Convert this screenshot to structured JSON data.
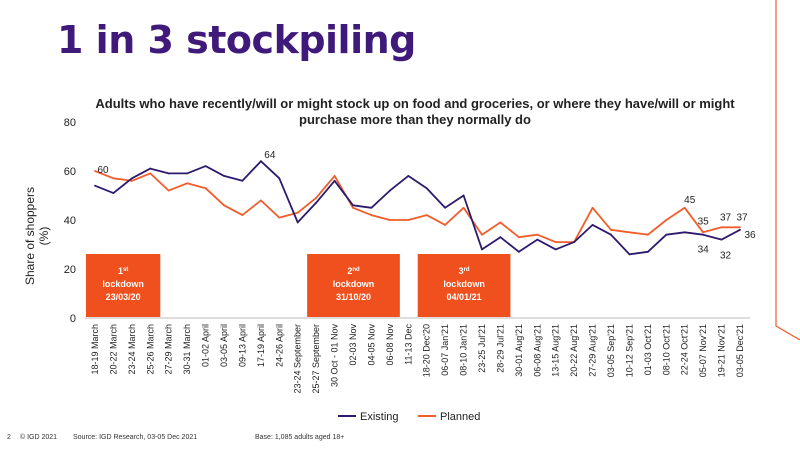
{
  "page": {
    "title": "1 in 3 stockpiling",
    "page_number": "2",
    "copyright": "© IGD 2021",
    "source": "Source: IGD Research, 03-05 Dec 2021",
    "base": "Base: 1,085 adults aged 18+"
  },
  "colors": {
    "existing": "#2e1a6e",
    "planned": "#f25c2a",
    "lockdown_box": "#f0501e",
    "title": "#3f1a7a"
  },
  "chart_data": {
    "type": "line",
    "title": "Adults who have recently/will or might stock up on food and groceries, or where they have/will or might purchase more than they normally do",
    "ylabel": "Share of shoppers (%)",
    "xlabel": "",
    "ylim": [
      0,
      80
    ],
    "yticks": [
      "0",
      "20",
      "40",
      "60",
      "80"
    ],
    "grid": false,
    "legend_position": "bottom",
    "categories": [
      "18-19 March",
      "20-22 March",
      "23-24 March",
      "25-26 March",
      "27-29 March",
      "30-31 March",
      "01-02 April",
      "03-05 April",
      "09-13 April",
      "17-19 April",
      "24-26 April",
      "23-24 September",
      "25-27 September",
      "30 Oct - 01 Nov",
      "02-03 Nov",
      "04-05 Nov",
      "06-08 Nov",
      "11-13 Dec",
      "18-20 Dec'20",
      "06-07 Jan'21",
      "08-10 Jan'21",
      "23-25 Jul'21",
      "28-29 Jul'21",
      "30-01 Aug'21",
      "06-08 Aug'21",
      "13-15 Aug'21",
      "20-22 Aug'21",
      "27-29 Aug'21",
      "03-05 Sep'21",
      "10-12 Sep'21",
      "01-03 Oct'21",
      "08-10 Oct'21",
      "22-24 Oct'21",
      "05-07 Nov'21",
      "19-21 Nov'21",
      "03-05 Dec'21"
    ],
    "series": [
      {
        "name": "Existing",
        "values": [
          54,
          51,
          57,
          61,
          59,
          59,
          62,
          58,
          56,
          64,
          57,
          39,
          47,
          56,
          46,
          45,
          52,
          58,
          53,
          45,
          50,
          28,
          33,
          27,
          32,
          28,
          31,
          38,
          34,
          26,
          27,
          34,
          35,
          34,
          32,
          36
        ]
      },
      {
        "name": "Planned",
        "values": [
          60,
          57,
          56,
          59,
          52,
          55,
          53,
          46,
          42,
          48,
          41,
          43,
          49,
          58,
          45,
          42,
          40,
          40,
          42,
          38,
          45,
          34,
          39,
          33,
          34,
          31,
          31,
          45,
          36,
          35,
          34,
          40,
          45,
          35,
          37,
          37
        ]
      }
    ],
    "data_labels": [
      {
        "series": "Planned",
        "index": 0,
        "text": "60"
      },
      {
        "series": "Existing",
        "index": 9,
        "text": "64"
      },
      {
        "series": "Planned",
        "index": 32,
        "text": "45"
      },
      {
        "series": "Planned",
        "index": 33,
        "text": "35"
      },
      {
        "series": "Existing",
        "index": 33,
        "text": "34"
      },
      {
        "series": "Planned",
        "index": 34,
        "text": "37"
      },
      {
        "series": "Existing",
        "index": 34,
        "text": "32"
      },
      {
        "series": "Planned",
        "index": 35,
        "text": "37"
      },
      {
        "series": "Existing",
        "index": 35,
        "text": "36"
      }
    ],
    "annotations": [
      {
        "ordinal": "1",
        "suffix": "st",
        "line1": "lockdown",
        "line2": "23/03/20",
        "start_index": 0,
        "end_index": 3
      },
      {
        "ordinal": "2",
        "suffix": "nd",
        "line1": "lockdown",
        "line2": "31/10/20",
        "start_index": 12,
        "end_index": 16
      },
      {
        "ordinal": "3",
        "suffix": "rd",
        "line1": "lockdown",
        "line2": "04/01/21",
        "start_index": 18,
        "end_index": 22
      }
    ]
  }
}
